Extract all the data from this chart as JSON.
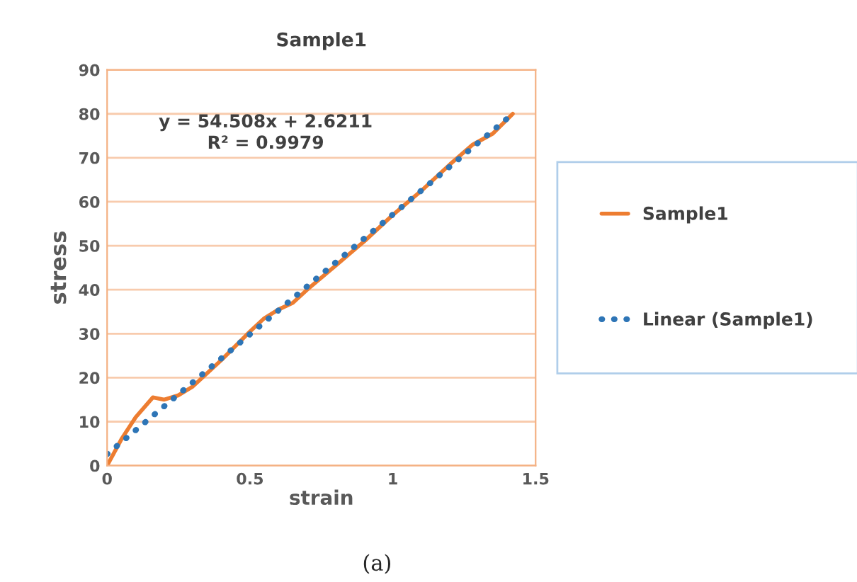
{
  "chart_data": {
    "type": "line",
    "title": "Sample1",
    "xlabel": "strain",
    "ylabel": "stress",
    "xlim": [
      0,
      1.5
    ],
    "xticks": [
      0,
      0.5,
      1,
      1.5
    ],
    "ylim": [
      0,
      90
    ],
    "yticks": [
      0,
      10,
      20,
      30,
      40,
      50,
      60,
      70,
      80,
      90
    ],
    "grid": "y",
    "legend": "right",
    "series": [
      {
        "name": "Sample1",
        "color": "#ed7d31",
        "line_style": "solid",
        "x": [
          0,
          0.05,
          0.1,
          0.16,
          0.2,
          0.25,
          0.3,
          0.4,
          0.5,
          0.55,
          0.6,
          0.65,
          0.7,
          0.8,
          0.9,
          1.0,
          1.1,
          1.2,
          1.28,
          1.35,
          1.42
        ],
        "values": [
          0,
          6,
          11,
          15.5,
          15,
          16,
          18,
          24,
          30.5,
          33.5,
          35.5,
          37,
          40,
          45.5,
          51,
          57,
          62.5,
          68.5,
          73,
          75.5,
          80
        ]
      },
      {
        "name": "Linear (Sample1)",
        "color": "#2e75b6",
        "line_style": "dotted",
        "x": [
          0,
          1.42
        ],
        "values": [
          2.6,
          80
        ]
      }
    ],
    "annotations": [
      "y = 54.508x + 2.6211\nR² = 0.9979",
      "(a)"
    ]
  }
}
